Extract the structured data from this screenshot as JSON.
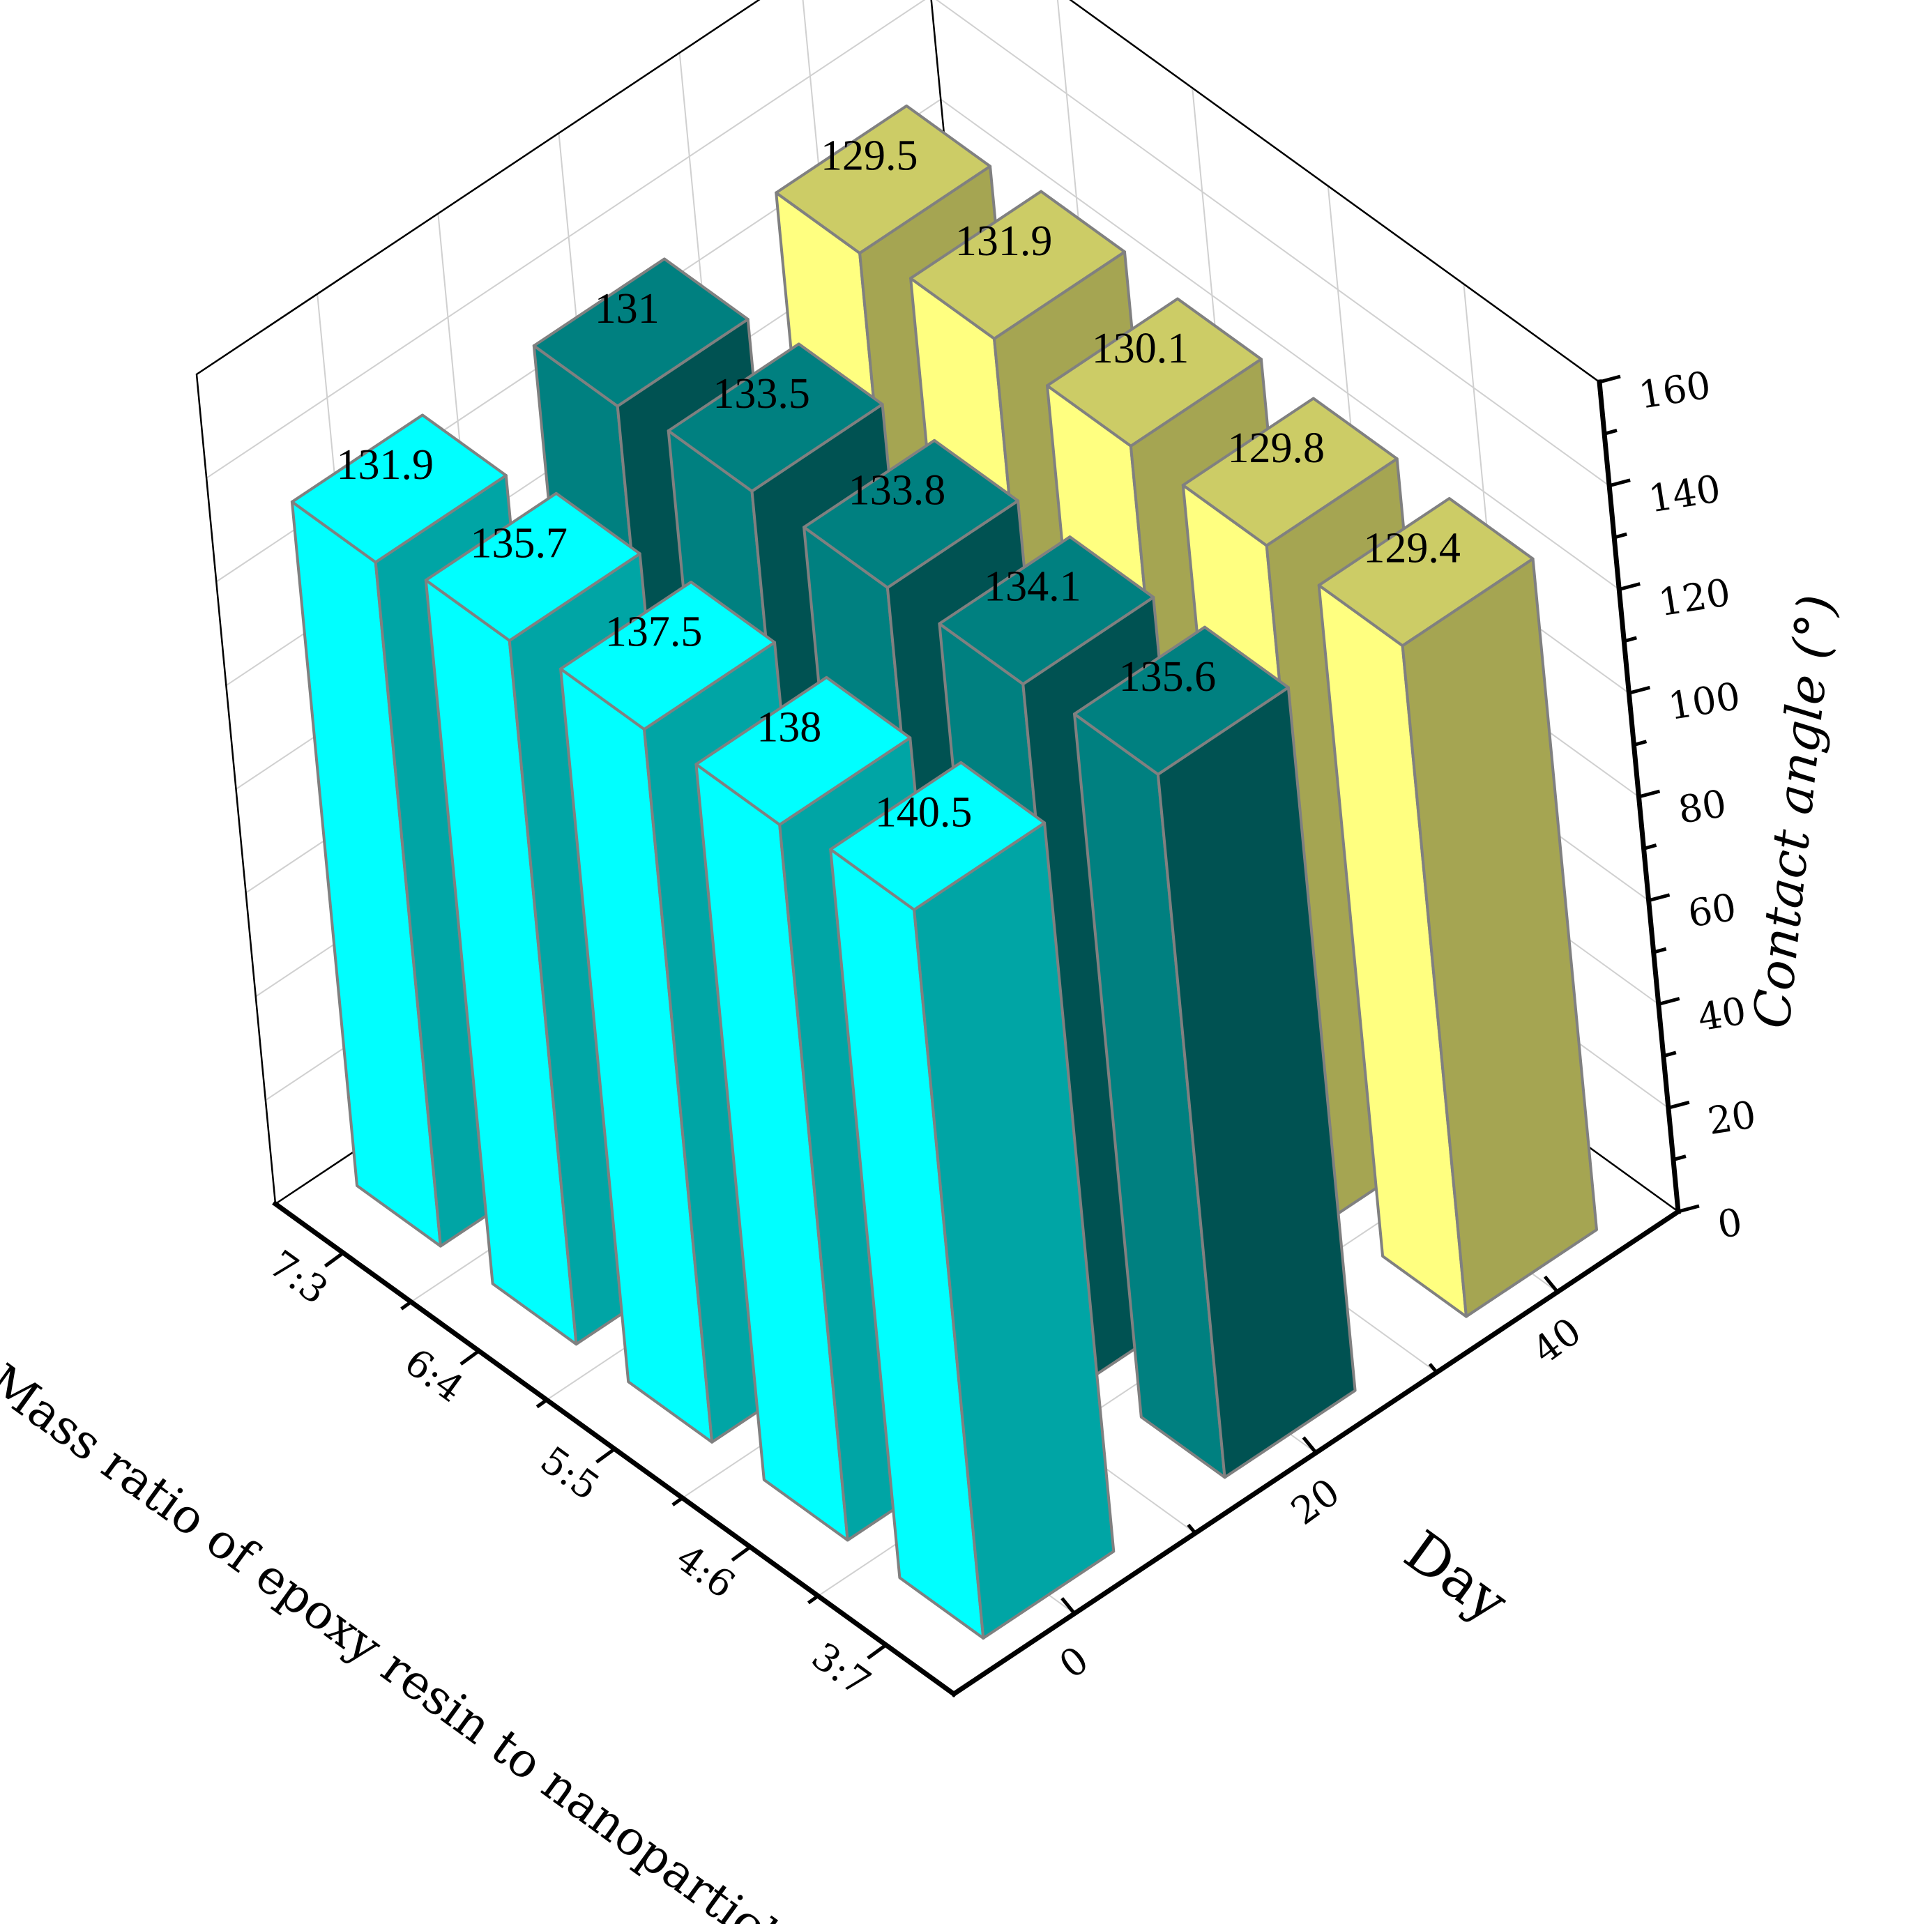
{
  "chart_data": {
    "type": "bar3d",
    "title": "",
    "xlabel": "Mass ratio of epoxy resin to nanoparticle",
    "ylabel": "Day",
    "zlabel": "Contact angle (°)",
    "categories": [
      "7:3",
      "6:4",
      "5:5",
      "4:6",
      "3:7"
    ],
    "days": [
      0,
      20,
      40
    ],
    "day_ticks": [
      "0",
      "20",
      "40"
    ],
    "zlim": [
      0,
      160
    ],
    "z_ticks": [
      "0",
      "20",
      "40",
      "60",
      "80",
      "100",
      "120",
      "140",
      "160"
    ],
    "grid": true,
    "series": [
      {
        "day": 0,
        "values": [
          131.9,
          135.7,
          137.5,
          138,
          140.5
        ],
        "labels": [
          "131.9",
          "135.7",
          "137.5",
          "138",
          "140.5"
        ],
        "color_front": "#00FFFF",
        "color_side": "#00A5A5",
        "color_top": "#00FFFF"
      },
      {
        "day": 20,
        "values": [
          131,
          133.5,
          133.8,
          134.1,
          135.6
        ],
        "labels": [
          "131",
          "133.5",
          "133.8",
          "134.1",
          "135.6"
        ],
        "color_front": "#008080",
        "color_side": "#005252",
        "color_top": "#008080"
      },
      {
        "day": 40,
        "values": [
          129.5,
          131.9,
          130.1,
          129.8,
          129.4
        ],
        "labels": [
          "129.5",
          "131.9",
          "130.1",
          "129.8",
          "129.4"
        ],
        "color_front": "#FFFF80",
        "color_side": "#A5A552",
        "color_top": "#CCCC66"
      }
    ]
  }
}
